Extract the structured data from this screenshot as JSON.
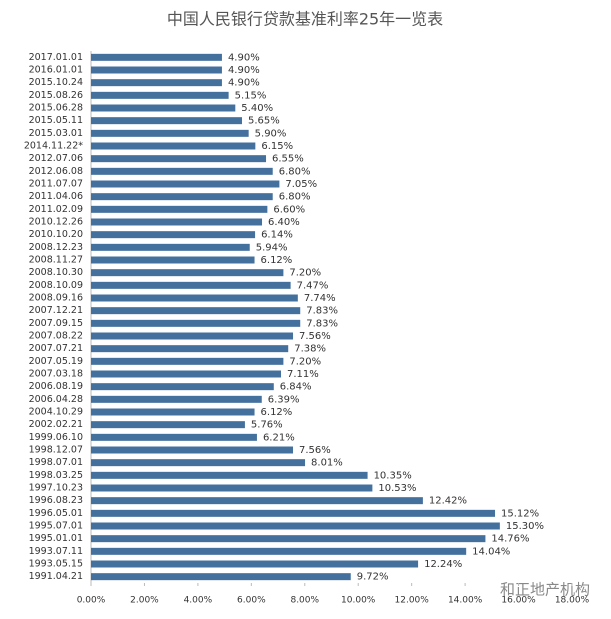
{
  "chart_data": {
    "type": "hbar",
    "title": "中国人民银行贷款基准利率25年一览表",
    "categories": [
      "2017.01.01",
      "2016.01.01",
      "2015.10.24",
      "2015.08.26",
      "2015.06.28",
      "2015.05.11",
      "2015.03.01",
      "2014.11.22*",
      "2012.07.06",
      "2012.06.08",
      "2011.07.07",
      "2011.04.06",
      "2011.02.09",
      "2010.12.26",
      "2010.10.20",
      "2008.12.23",
      "2008.11.27",
      "2008.10.30",
      "2008.10.09",
      "2008.09.16",
      "2007.12.21",
      "2007.09.15",
      "2007.08.22",
      "2007.07.21",
      "2007.05.19",
      "2007.03.18",
      "2006.08.19",
      "2006.04.28",
      "2004.10.29",
      "2002.02.21",
      "1999.06.10",
      "1998.12.07",
      "1998.07.01",
      "1998.03.25",
      "1997.10.23",
      "1996.08.23",
      "1996.05.01",
      "1995.07.01",
      "1995.01.01",
      "1993.07.11",
      "1993.05.15",
      "1991.04.21"
    ],
    "values": [
      4.9,
      4.9,
      4.9,
      5.15,
      5.4,
      5.65,
      5.9,
      6.15,
      6.55,
      6.8,
      7.05,
      6.8,
      6.6,
      6.4,
      6.14,
      5.94,
      6.12,
      7.2,
      7.47,
      7.74,
      7.83,
      7.83,
      7.56,
      7.38,
      7.2,
      7.11,
      6.84,
      6.39,
      6.12,
      5.76,
      6.21,
      7.56,
      8.01,
      10.35,
      10.53,
      12.42,
      15.12,
      15.3,
      14.76,
      14.04,
      12.24,
      9.72
    ],
    "value_labels": [
      "4.90%",
      "4.90%",
      "4.90%",
      "5.15%",
      "5.40%",
      "5.65%",
      "5.90%",
      "6.15%",
      "6.55%",
      "6.80%",
      "7.05%",
      "6.80%",
      "6.60%",
      "6.40%",
      "6.14%",
      "5.94%",
      "6.12%",
      "7.20%",
      "7.47%",
      "7.74%",
      "7.83%",
      "7.83%",
      "7.56%",
      "7.38%",
      "7.20%",
      "7.11%",
      "6.84%",
      "6.39%",
      "6.12%",
      "5.76%",
      "6.21%",
      "7.56%",
      "8.01%",
      "10.35%",
      "10.53%",
      "12.42%",
      "15.12%",
      "15.30%",
      "14.76%",
      "14.04%",
      "12.24%",
      "9.72%"
    ],
    "color": "#44709d",
    "xlim": [
      0,
      18
    ],
    "xticks": [
      {
        "value": 0,
        "label": "0.00%"
      },
      {
        "value": 2,
        "label": "2.00%"
      },
      {
        "value": 4,
        "label": "4.00%"
      },
      {
        "value": 6,
        "label": "6.00%"
      },
      {
        "value": 8,
        "label": "8.00%"
      },
      {
        "value": 10,
        "label": "10.00%"
      },
      {
        "value": 12,
        "label": "12.00%"
      },
      {
        "value": 14,
        "label": "14.00%"
      },
      {
        "value": 16,
        "label": "16.00%"
      },
      {
        "value": 18,
        "label": "18.00%"
      }
    ],
    "watermark": "和正地产机构"
  }
}
